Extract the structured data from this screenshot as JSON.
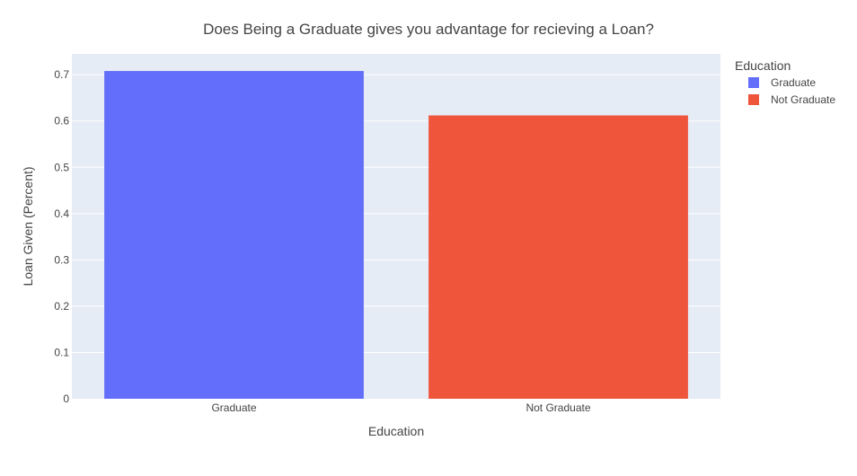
{
  "chart_data": {
    "type": "bar",
    "title": "Does Being a Graduate gives you advantage for recieving a Loan?",
    "xlabel": "Education",
    "ylabel": "Loan Given (Percent)",
    "categories": [
      "Graduate",
      "Not Graduate"
    ],
    "series": [
      {
        "name": "Graduate",
        "category": "Graduate",
        "value": 0.708,
        "color": "#636efa"
      },
      {
        "name": "Not Graduate",
        "category": "Not Graduate",
        "value": 0.612,
        "color": "#ef553b"
      }
    ],
    "ylim": [
      0,
      0.745
    ],
    "yticks": [
      0,
      0.1,
      0.2,
      0.3,
      0.4,
      0.5,
      0.6,
      0.7
    ],
    "ytick_labels": [
      "0",
      "0.1",
      "0.2",
      "0.3",
      "0.4",
      "0.5",
      "0.6",
      "0.7"
    ],
    "grid": true,
    "legend": {
      "title": "Education",
      "position": "top-right"
    },
    "colors": {
      "plot_bg": "#e5ecf6",
      "grid": "#ffffff",
      "text": "#444444"
    }
  }
}
